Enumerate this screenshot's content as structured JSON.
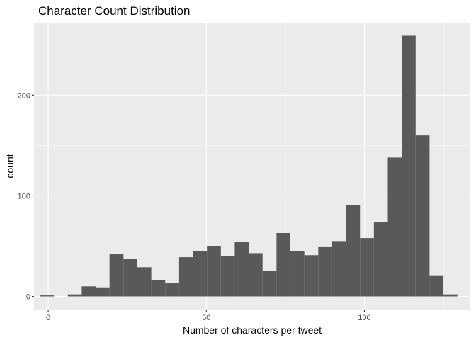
{
  "chart_data": {
    "type": "bar",
    "title": "Character Count Distribution",
    "xlabel": "Number of characters per tweet",
    "ylabel": "count",
    "x_ticks": [
      0,
      50,
      100
    ],
    "y_ticks": [
      0,
      100,
      200
    ],
    "xlim": [
      -4.5,
      133.5
    ],
    "ylim": [
      -13,
      272
    ],
    "bin_width": 4.4,
    "grid": true,
    "legend": "none",
    "colors": {
      "panel_background": "#ebebeb",
      "grid_major": "#ffffff",
      "bar_fill": "#595959"
    },
    "bins": [
      {
        "x": -0.4,
        "count": 1
      },
      {
        "x": 4.0,
        "count": 0
      },
      {
        "x": 8.4,
        "count": 2
      },
      {
        "x": 12.8,
        "count": 10
      },
      {
        "x": 17.2,
        "count": 9
      },
      {
        "x": 21.6,
        "count": 42
      },
      {
        "x": 26.0,
        "count": 37
      },
      {
        "x": 30.4,
        "count": 29
      },
      {
        "x": 34.8,
        "count": 16
      },
      {
        "x": 39.2,
        "count": 13
      },
      {
        "x": 43.6,
        "count": 39
      },
      {
        "x": 48.0,
        "count": 45
      },
      {
        "x": 52.4,
        "count": 50
      },
      {
        "x": 56.8,
        "count": 40
      },
      {
        "x": 61.2,
        "count": 54
      },
      {
        "x": 65.6,
        "count": 43
      },
      {
        "x": 70.0,
        "count": 25
      },
      {
        "x": 74.4,
        "count": 63
      },
      {
        "x": 78.8,
        "count": 45
      },
      {
        "x": 83.2,
        "count": 41
      },
      {
        "x": 87.6,
        "count": 49
      },
      {
        "x": 92.0,
        "count": 55
      },
      {
        "x": 96.4,
        "count": 91
      },
      {
        "x": 100.8,
        "count": 58
      },
      {
        "x": 105.2,
        "count": 74
      },
      {
        "x": 109.6,
        "count": 138
      },
      {
        "x": 114.0,
        "count": 259
      },
      {
        "x": 118.4,
        "count": 160
      },
      {
        "x": 122.8,
        "count": 21
      },
      {
        "x": 127.2,
        "count": 2
      }
    ]
  }
}
